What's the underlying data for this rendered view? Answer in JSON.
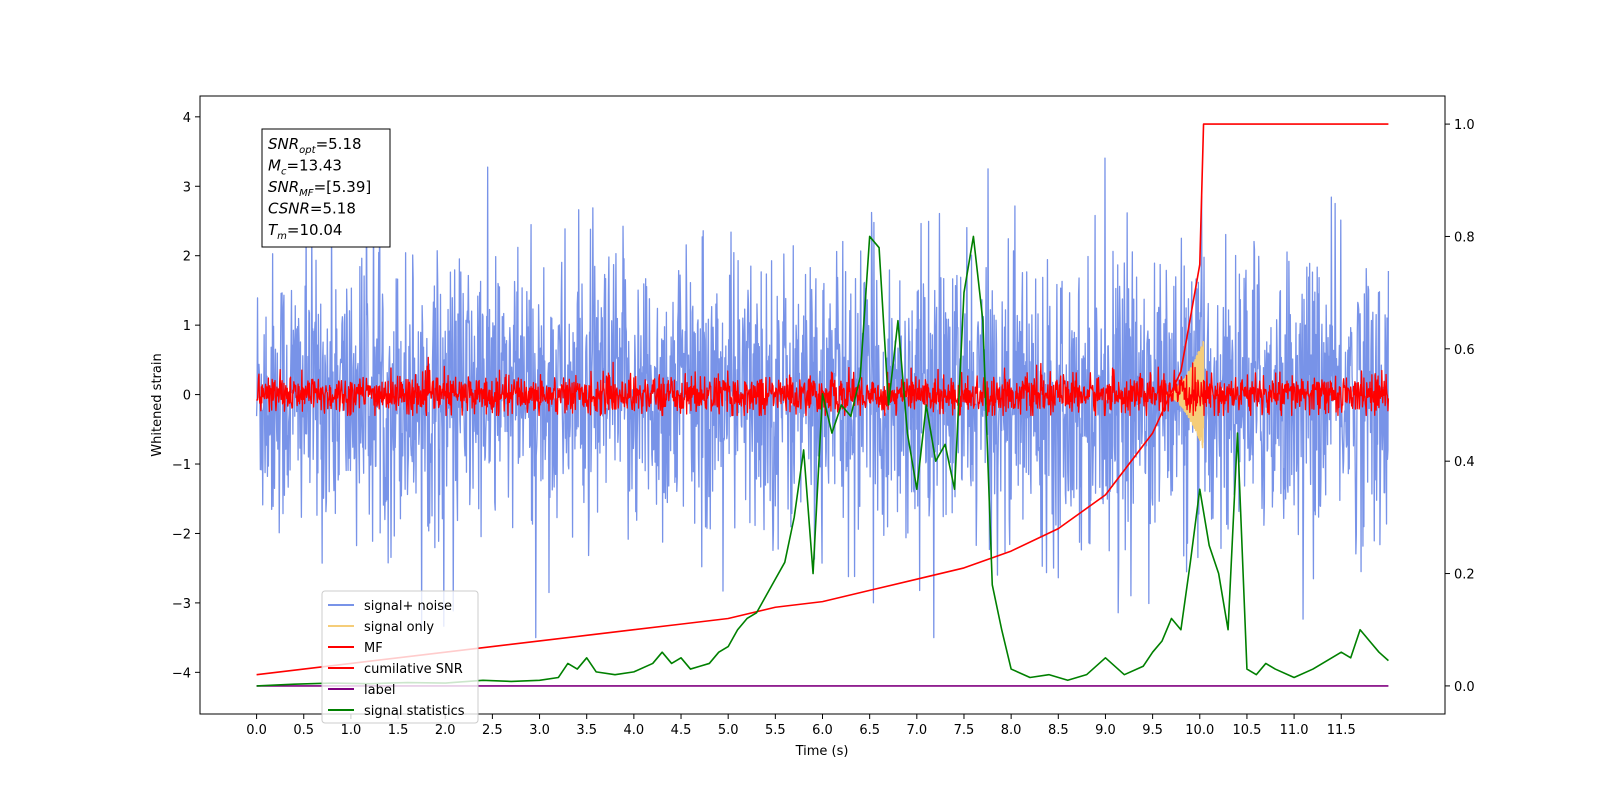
{
  "chart_data": {
    "type": "line",
    "xlabel": "Time (s)",
    "ylabel": "Whitened strain",
    "xlim": [
      -0.6,
      12.6
    ],
    "ylim": [
      -4.6,
      4.3
    ],
    "y2lim": [
      -0.05,
      1.05
    ],
    "x_ticks": [
      0.0,
      0.5,
      1.0,
      1.5,
      2.0,
      2.5,
      3.0,
      3.5,
      4.0,
      4.5,
      5.0,
      5.5,
      6.0,
      6.5,
      7.0,
      7.5,
      8.0,
      8.5,
      9.0,
      9.5,
      10.0,
      10.5,
      11.0,
      11.5
    ],
    "x_tick_labels": [
      "0.0",
      "0.5",
      "1.0",
      "1.5",
      "2.0",
      "2.5",
      "3.0",
      "3.5",
      "4.0",
      "4.5",
      "5.0",
      "5.5",
      "6.0",
      "6.5",
      "7.0",
      "7.5",
      "8.0",
      "8.5",
      "9.0",
      "9.5",
      "10.0",
      "10.5",
      "11.0",
      "11.5"
    ],
    "y_ticks": [
      -4,
      -3,
      -2,
      -1,
      0,
      1,
      2,
      3,
      4
    ],
    "y_tick_labels": [
      "−4",
      "−3",
      "−2",
      "−1",
      "0",
      "1",
      "2",
      "3",
      "4"
    ],
    "y2_ticks": [
      0.0,
      0.2,
      0.4,
      0.6,
      0.8,
      1.0
    ],
    "y2_tick_labels": [
      "0.0",
      "0.2",
      "0.4",
      "0.6",
      "0.8",
      "1.0"
    ],
    "grid": false,
    "legend_placement": "lower-left",
    "stats_box": [
      {
        "base": "SNR",
        "sub": "opt",
        "value": "=5.18"
      },
      {
        "base": "M",
        "sub": "c",
        "value": "=13.43"
      },
      {
        "base": "SNR",
        "sub": "MF",
        "value": "=[5.39]"
      },
      {
        "base": "CSNR",
        "sub": "",
        "value": "=5.18"
      },
      {
        "base": "T",
        "sub": "m",
        "value": "=10.04"
      }
    ],
    "series": [
      {
        "name": "signal+ noise",
        "color": "#7893e8",
        "axis": "left",
        "kind": "noise",
        "t_range": [
          0.0,
          12.0
        ],
        "mean": 0.0,
        "envelope_min": [
          -3.5,
          -2.0
        ],
        "envelope_max": [
          2.0,
          3.85
        ]
      },
      {
        "name": "signal only",
        "color": "#f5cd79",
        "axis": "left",
        "kind": "chirp",
        "t_range": [
          9.6,
          10.04
        ],
        "peak_t": 10.04,
        "peak_amplitude": 0.8
      },
      {
        "name": "MF",
        "color": "#ff0000",
        "axis": "left",
        "kind": "noise",
        "t_range": [
          0.0,
          12.0
        ],
        "mean": 0.0,
        "envelope_min": [
          -0.3,
          -0.2
        ],
        "envelope_max": [
          0.3,
          0.7
        ]
      },
      {
        "name": "cumilative SNR",
        "color": "#ff0000",
        "axis": "right",
        "x": [
          0.0,
          0.5,
          1.0,
          1.5,
          2.0,
          2.5,
          3.0,
          3.5,
          4.0,
          4.5,
          5.0,
          5.5,
          6.0,
          6.5,
          7.0,
          7.5,
          8.0,
          8.5,
          9.0,
          9.5,
          9.8,
          10.0,
          10.04,
          10.5,
          11.0,
          11.5,
          12.0
        ],
        "y": [
          0.02,
          0.03,
          0.04,
          0.05,
          0.06,
          0.07,
          0.08,
          0.09,
          0.1,
          0.11,
          0.12,
          0.14,
          0.15,
          0.17,
          0.19,
          0.21,
          0.24,
          0.28,
          0.34,
          0.45,
          0.56,
          0.75,
          1.0,
          1.0,
          1.0,
          1.0,
          1.0
        ]
      },
      {
        "name": "label",
        "color": "#800080",
        "axis": "right",
        "x": [
          0.0,
          12.0
        ],
        "y": [
          0.0,
          0.0
        ]
      },
      {
        "name": "signal statistics",
        "color": "#008000",
        "axis": "right",
        "x": [
          0.0,
          0.4,
          0.8,
          1.2,
          1.6,
          2.0,
          2.4,
          2.7,
          3.0,
          3.2,
          3.3,
          3.4,
          3.5,
          3.6,
          3.8,
          4.0,
          4.2,
          4.3,
          4.4,
          4.5,
          4.6,
          4.7,
          4.8,
          4.9,
          5.0,
          5.1,
          5.2,
          5.3,
          5.4,
          5.5,
          5.6,
          5.7,
          5.8,
          5.9,
          6.0,
          6.1,
          6.2,
          6.3,
          6.4,
          6.5,
          6.6,
          6.7,
          6.8,
          6.9,
          7.0,
          7.1,
          7.2,
          7.3,
          7.4,
          7.5,
          7.6,
          7.7,
          7.8,
          7.9,
          8.0,
          8.2,
          8.4,
          8.6,
          8.8,
          9.0,
          9.2,
          9.4,
          9.5,
          9.6,
          9.7,
          9.8,
          9.9,
          10.0,
          10.1,
          10.2,
          10.3,
          10.4,
          10.5,
          10.6,
          10.7,
          10.8,
          11.0,
          11.2,
          11.4,
          11.5,
          11.6,
          11.7,
          11.8,
          11.9,
          12.0
        ],
        "y": [
          0.0,
          0.003,
          0.005,
          0.004,
          0.006,
          0.005,
          0.01,
          0.008,
          0.01,
          0.015,
          0.04,
          0.03,
          0.05,
          0.025,
          0.02,
          0.025,
          0.04,
          0.06,
          0.04,
          0.05,
          0.03,
          0.035,
          0.04,
          0.06,
          0.07,
          0.1,
          0.12,
          0.13,
          0.16,
          0.19,
          0.22,
          0.3,
          0.42,
          0.2,
          0.52,
          0.45,
          0.5,
          0.48,
          0.55,
          0.8,
          0.78,
          0.5,
          0.65,
          0.45,
          0.35,
          0.5,
          0.4,
          0.43,
          0.35,
          0.7,
          0.8,
          0.65,
          0.18,
          0.1,
          0.03,
          0.015,
          0.02,
          0.01,
          0.02,
          0.05,
          0.02,
          0.035,
          0.06,
          0.08,
          0.12,
          0.1,
          0.22,
          0.35,
          0.25,
          0.2,
          0.1,
          0.45,
          0.03,
          0.02,
          0.04,
          0.03,
          0.015,
          0.03,
          0.05,
          0.06,
          0.05,
          0.1,
          0.08,
          0.06,
          0.045
        ]
      }
    ]
  }
}
